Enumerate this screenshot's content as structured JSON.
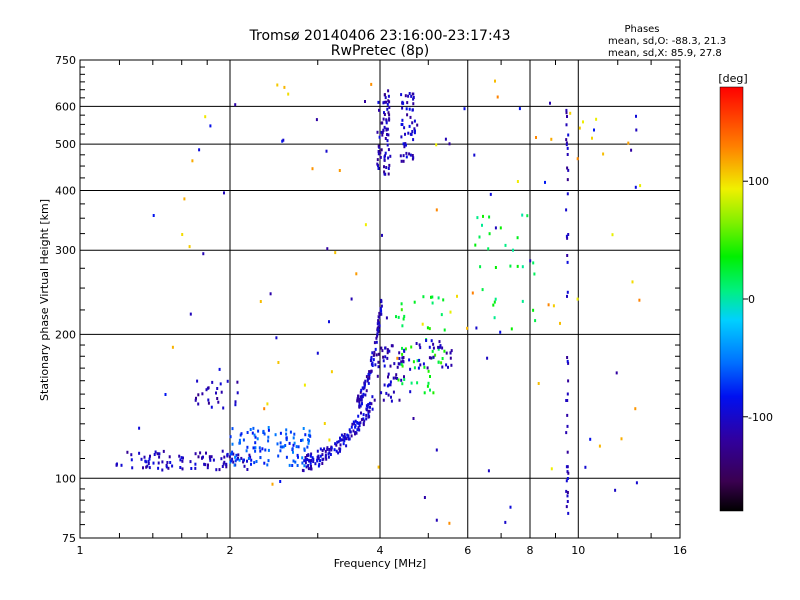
{
  "chart_data": {
    "type": "scatter",
    "title_line1": "Tromsø 20140406 23:16:00-23:17:43",
    "title_line2": "RwPretec (8p)",
    "xlabel": "Frequency [MHz]",
    "ylabel": "Stationary phase Virtual Height [km]",
    "x_scale": "log",
    "y_scale": "log",
    "xlim": [
      1,
      16
    ],
    "ylim": [
      75,
      750
    ],
    "x_ticks": [
      1,
      2,
      4,
      6,
      8,
      10,
      16
    ],
    "x_tick_labels": [
      "1",
      "2",
      "4",
      "6",
      "8",
      "10",
      "16"
    ],
    "y_ticks": [
      75,
      100,
      200,
      300,
      400,
      500,
      600,
      750
    ],
    "y_tick_labels": [
      "75",
      "100",
      "200",
      "300",
      "400",
      "500",
      "600",
      "750"
    ],
    "grid": true,
    "stats": {
      "title": "Phases",
      "line_o": "mean, sd,O: -88.3, 21.3",
      "line_x": "mean, sd,X:  85.9, 27.8"
    },
    "colorbar": {
      "label": "[deg]",
      "range": [
        -180,
        180
      ],
      "ticks": [
        100,
        0,
        -100
      ],
      "tick_labels": [
        "100",
        "0",
        "-100"
      ]
    },
    "point_groups": [
      {
        "name": "low-band-blue",
        "x_range": [
          1.18,
          2.2
        ],
        "y_range": [
          104,
          114
        ],
        "phase": -108,
        "count": 95
      },
      {
        "name": "low-band-cyan",
        "x_range": [
          2.0,
          2.9
        ],
        "y_range": [
          106,
          128
        ],
        "phase": -65,
        "count": 110
      },
      {
        "name": "mid-trace-blue",
        "x_range": [
          2.8,
          3.9
        ],
        "y_range": [
          108,
          145
        ],
        "phase": -100,
        "count": 140
      },
      {
        "name": "rise-trace-blue",
        "x_range": [
          3.6,
          4.05
        ],
        "y_range": [
          145,
          240
        ],
        "phase": -105,
        "count": 90
      },
      {
        "name": "f2-low-blue",
        "x_range": [
          3.9,
          4.6
        ],
        "y_range": [
          145,
          190
        ],
        "phase": -110,
        "count": 60
      },
      {
        "name": "f2-mid-green",
        "x_range": [
          4.3,
          5.4
        ],
        "y_range": [
          150,
          245
        ],
        "phase": 30,
        "count": 50
      },
      {
        "name": "f2-upper-blue",
        "x_range": [
          4.7,
          5.6
        ],
        "y_range": [
          170,
          195
        ],
        "phase": -105,
        "count": 30
      },
      {
        "name": "e-cluster-blue",
        "x_range": [
          1.7,
          2.1
        ],
        "y_range": [
          140,
          160
        ],
        "phase": -110,
        "count": 25
      },
      {
        "name": "high-column-a",
        "x_range": [
          3.95,
          4.2
        ],
        "y_range": [
          430,
          650
        ],
        "phase": -110,
        "count": 70
      },
      {
        "name": "high-column-b",
        "x_range": [
          4.4,
          4.75
        ],
        "y_range": [
          460,
          640
        ],
        "phase": -105,
        "count": 55
      },
      {
        "name": "vertical-line-9",
        "x_range": [
          9.45,
          9.55
        ],
        "y_range": [
          82,
          630
        ],
        "phase": -110,
        "count": 45
      },
      {
        "name": "scatter-mid-green",
        "x_range": [
          6.2,
          8.2
        ],
        "y_range": [
          200,
          360
        ],
        "phase": 20,
        "count": 30
      },
      {
        "name": "scatter-x-mode",
        "x_range": [
          1.3,
          14
        ],
        "y_range": [
          80,
          700
        ],
        "phase": 110,
        "count": 60
      },
      {
        "name": "scatter-o-mode",
        "x_range": [
          1.3,
          14.5
        ],
        "y_range": [
          78,
          650
        ],
        "phase": -100,
        "count": 55
      }
    ]
  }
}
